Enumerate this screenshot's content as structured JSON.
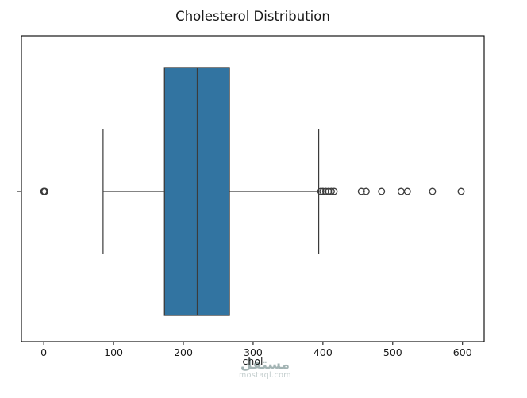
{
  "chart_data": {
    "type": "box",
    "orientation": "horizontal",
    "title": "Cholesterol Distribution",
    "xlabel": "chol",
    "ylabel": "",
    "xlim": [
      -32,
      631
    ],
    "xticks": [
      0,
      100,
      200,
      300,
      400,
      500,
      600
    ],
    "grid": false,
    "legend": false,
    "box_fill": "#3274a1",
    "line_color": "#3b3b3b",
    "axis_color": "#000000",
    "tick_label_color": "#1a1a1a",
    "series": [
      {
        "name": "chol",
        "whisker_low": 85,
        "q1": 173,
        "median": 220,
        "q3": 266,
        "whisker_high": 394,
        "outliers": [
          0,
          0,
          0,
          397,
          400,
          404,
          408,
          412,
          416,
          455,
          462,
          484,
          512,
          521,
          557,
          598
        ]
      }
    ]
  },
  "watermark": {
    "text_ar": "مستقل",
    "text_domain": "mostaql.com"
  }
}
